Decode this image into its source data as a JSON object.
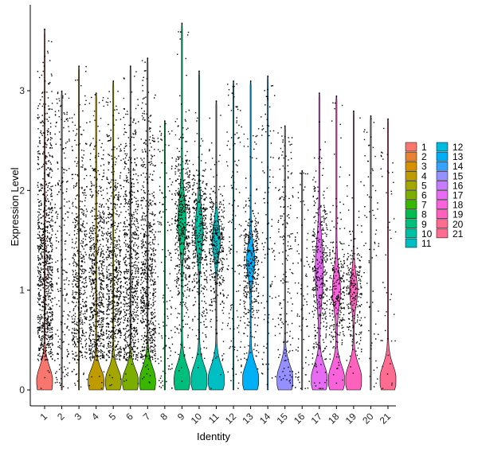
{
  "chart_data": {
    "type": "violin",
    "title": "",
    "xlabel": "Identity",
    "ylabel": "Expression Level",
    "ylim": [
      -0.1,
      3.85
    ],
    "yticks": [
      0,
      1,
      2,
      3
    ],
    "categories": [
      "1",
      "2",
      "3",
      "4",
      "5",
      "6",
      "7",
      "8",
      "9",
      "10",
      "11",
      "12",
      "13",
      "14",
      "15",
      "16",
      "17",
      "18",
      "19",
      "20",
      "21"
    ],
    "colors": [
      "#F8766D",
      "#EA8331",
      "#D89000",
      "#C09B00",
      "#A3A500",
      "#7CAE00",
      "#39B600",
      "#00BB4E",
      "#00BF7D",
      "#00C1A3",
      "#00BFC4",
      "#00BAE0",
      "#00B0F6",
      "#35A2FF",
      "#9590FF",
      "#C77CFF",
      "#E76BF3",
      "#FA62DB",
      "#FF62BC",
      "#FF6C91",
      "#FF6C91"
    ],
    "series": [
      {
        "name": "1",
        "max": 3.62,
        "mode": 0.08,
        "peak": 0.2,
        "dot_density": 1.0,
        "bulk": 0.92
      },
      {
        "name": "2",
        "max": 3.0,
        "mode": 0.0,
        "peak": 0.0,
        "dot_density": 0.25,
        "bulk": 0.0
      },
      {
        "name": "3",
        "max": 3.25,
        "mode": 0.0,
        "peak": 0.0,
        "dot_density": 0.55,
        "bulk": 0.85
      },
      {
        "name": "4",
        "max": 2.98,
        "mode": 0.08,
        "peak": 0.17,
        "dot_density": 0.75,
        "bulk": 0.85
      },
      {
        "name": "5",
        "max": 3.1,
        "mode": 0.08,
        "peak": 0.17,
        "dot_density": 0.75,
        "bulk": 0.85
      },
      {
        "name": "6",
        "max": 3.25,
        "mode": 0.08,
        "peak": 0.17,
        "dot_density": 0.75,
        "bulk": 0.85
      },
      {
        "name": "7",
        "max": 3.33,
        "mode": 0.08,
        "peak": 0.2,
        "dot_density": 0.75,
        "bulk": 0.85
      },
      {
        "name": "8",
        "max": 2.7,
        "mode": 0.0,
        "peak": 0.0,
        "dot_density": 0.15,
        "bulk": 0.0
      },
      {
        "name": "9",
        "max": 3.68,
        "mode": 0.1,
        "peak": 0.2,
        "dot_density": 0.55,
        "bulk": 0.8,
        "upper_peak": 1.7,
        "upper_width": 0.32
      },
      {
        "name": "10",
        "max": 3.2,
        "mode": 0.1,
        "peak": 0.2,
        "dot_density": 0.45,
        "bulk": 0.8,
        "upper_peak": 1.6,
        "upper_width": 0.28
      },
      {
        "name": "11",
        "max": 2.9,
        "mode": 0.1,
        "peak": 0.2,
        "dot_density": 0.4,
        "bulk": 0.8,
        "upper_peak": 1.5,
        "upper_width": 0.22
      },
      {
        "name": "12",
        "max": 3.1,
        "mode": 0.0,
        "peak": 0.0,
        "dot_density": 0.15,
        "bulk": 0.0
      },
      {
        "name": "13",
        "max": 3.1,
        "mode": 0.1,
        "peak": 0.2,
        "dot_density": 0.4,
        "bulk": 0.8,
        "upper_peak": 1.3,
        "upper_width": 0.22
      },
      {
        "name": "14",
        "max": 3.15,
        "mode": 0.0,
        "peak": 0.0,
        "dot_density": 0.12,
        "bulk": 0.0
      },
      {
        "name": "15",
        "max": 2.65,
        "mode": 0.1,
        "peak": 0.2,
        "dot_density": 0.2,
        "bulk": 0.0
      },
      {
        "name": "16",
        "max": 2.2,
        "mode": 0.0,
        "peak": 0.0,
        "dot_density": 0.1,
        "bulk": 0.0
      },
      {
        "name": "17",
        "max": 2.98,
        "mode": 0.1,
        "peak": 0.2,
        "dot_density": 0.4,
        "bulk": 0.8,
        "upper_peak": 1.2,
        "upper_width": 0.4
      },
      {
        "name": "18",
        "max": 2.95,
        "mode": 0.1,
        "peak": 0.2,
        "dot_density": 0.3,
        "bulk": 0.8,
        "upper_peak": 1.0,
        "upper_width": 0.25
      },
      {
        "name": "19",
        "max": 2.8,
        "mode": 0.1,
        "peak": 0.2,
        "dot_density": 0.25,
        "bulk": 0.8,
        "upper_peak": 1.0,
        "upper_width": 0.2
      },
      {
        "name": "20",
        "max": 2.75,
        "mode": 0.0,
        "peak": 0.0,
        "dot_density": 0.08,
        "bulk": 0.0
      },
      {
        "name": "21",
        "max": 2.72,
        "mode": 0.1,
        "peak": 0.2,
        "dot_density": 0.05,
        "bulk": 0.0
      }
    ],
    "legend": {
      "placement": "right",
      "columns": 2,
      "entries": [
        "1",
        "2",
        "3",
        "4",
        "5",
        "6",
        "7",
        "8",
        "9",
        "10",
        "11",
        "12",
        "13",
        "14",
        "15",
        "16",
        "17",
        "18",
        "19",
        "20",
        "21"
      ]
    },
    "grid": false
  }
}
